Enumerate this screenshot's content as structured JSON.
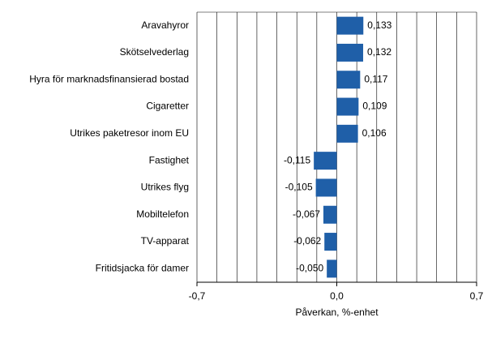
{
  "chart_data": {
    "type": "barh",
    "categories": [
      "Aravahyror",
      "Skötselvederlag",
      "Hyra för marknadsfinansierad bostad",
      "Cigaretter",
      "Utrikes paketresor inom EU",
      "Fastighet",
      "Utrikes flyg",
      "Mobiltelefon",
      "TV-apparat",
      "Fritidsjacka för damer"
    ],
    "values": [
      0.133,
      0.132,
      0.117,
      0.109,
      0.106,
      -0.115,
      -0.105,
      -0.067,
      -0.062,
      -0.05
    ],
    "value_labels": [
      "0,133",
      "0,132",
      "0,117",
      "0,109",
      "0,106",
      "-0,115",
      "-0,105",
      "-0,067",
      "-0,062",
      "-0,050"
    ],
    "color": "#1f5fa8",
    "xlim": [
      -0.7,
      0.7
    ],
    "xticks": [
      {
        "value": -0.7,
        "label": "-0,7"
      },
      {
        "value": 0,
        "label": "0,0"
      },
      {
        "value": 0.7,
        "label": "0,7"
      }
    ],
    "xgrid": [
      -0.7,
      -0.6,
      -0.5,
      -0.4,
      -0.3,
      -0.2,
      -0.1,
      0,
      0.1,
      0.2,
      0.3,
      0.4,
      0.5,
      0.6,
      0.7
    ],
    "x_label": "Påverkan, %-enhet"
  }
}
